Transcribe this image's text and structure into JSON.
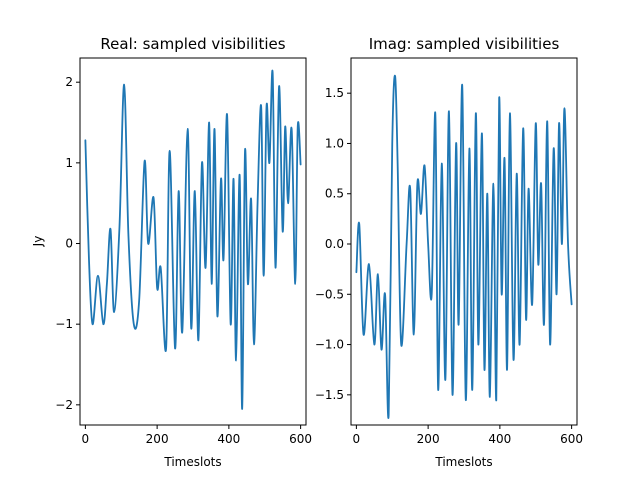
{
  "figure": {
    "background": "#ffffff"
  },
  "chart_data": [
    {
      "type": "line",
      "title": "Real: sampled visibilities",
      "xlabel": "Timeslots",
      "ylabel": "Jy",
      "xlim": [
        -15,
        615
      ],
      "ylim": [
        -2.25,
        2.3
      ],
      "xticks": [
        0,
        200,
        400,
        600
      ],
      "xtick_labels": [
        "0",
        "200",
        "400",
        "600"
      ],
      "yticks": [
        -2,
        -1,
        0,
        1,
        2
      ],
      "ytick_labels": [
        "−2",
        "−1",
        "0",
        "1",
        "2"
      ],
      "grid": false,
      "color": "#1f77b4",
      "series": [
        {
          "x": [
            0,
            10,
            20,
            35,
            50,
            60,
            70,
            80,
            95,
            108,
            120,
            135,
            150,
            165,
            175,
            190,
            200,
            210,
            225,
            235,
            250,
            260,
            270,
            285,
            295,
            305,
            315,
            325,
            335,
            345,
            352,
            360,
            368,
            378,
            385,
            395,
            405,
            413,
            420,
            430,
            437,
            445,
            453,
            462,
            470,
            480,
            490,
            497,
            505,
            513,
            522,
            530,
            540,
            550,
            557,
            565,
            575,
            585,
            592,
            600
          ],
          "y": [
            1.28,
            -0.2,
            -1.0,
            -0.4,
            -1.0,
            -0.5,
            0.18,
            -0.85,
            0.2,
            1.97,
            0.1,
            -1.0,
            -0.7,
            1.02,
            0.0,
            0.57,
            -0.55,
            -0.3,
            -1.3,
            1.15,
            -1.3,
            0.65,
            -1.1,
            1.42,
            -1.05,
            0.65,
            -1.2,
            1.0,
            -0.3,
            1.5,
            -0.5,
            1.42,
            -0.9,
            0.8,
            -0.2,
            1.6,
            -1.0,
            0.8,
            -1.45,
            0.85,
            -2.05,
            1.15,
            -0.5,
            0.55,
            -1.25,
            0.5,
            1.7,
            -0.4,
            1.7,
            1.0,
            2.12,
            -0.3,
            1.95,
            0.15,
            1.45,
            0.5,
            1.42,
            -0.5,
            1.45,
            0.98
          ]
        }
      ]
    },
    {
      "type": "line",
      "title": "Imag: sampled visibilities",
      "xlabel": "Timeslots",
      "ylabel": "",
      "xlim": [
        -15,
        615
      ],
      "ylim": [
        -1.8,
        1.85
      ],
      "xticks": [
        0,
        200,
        400,
        600
      ],
      "xtick_labels": [
        "0",
        "200",
        "400",
        "600"
      ],
      "yticks": [
        -1.5,
        -1.0,
        -0.5,
        0.0,
        0.5,
        1.0,
        1.5
      ],
      "ytick_labels": [
        "−1.5",
        "−1.0",
        "−0.5",
        "0.0",
        "0.5",
        "1.0",
        "1.5"
      ],
      "grid": false,
      "color": "#1f77b4",
      "series": [
        {
          "x": [
            0,
            8,
            20,
            35,
            50,
            60,
            70,
            80,
            90,
            100,
            108,
            115,
            125,
            140,
            150,
            160,
            170,
            180,
            190,
            200,
            210,
            220,
            228,
            238,
            248,
            258,
            268,
            278,
            285,
            295,
            305,
            315,
            323,
            333,
            340,
            350,
            357,
            365,
            372,
            382,
            390,
            398,
            405,
            413,
            420,
            428,
            438,
            447,
            455,
            465,
            473,
            480,
            490,
            500,
            507,
            515,
            523,
            532,
            540,
            550,
            558,
            565,
            573,
            580,
            590,
            600
          ],
          "y": [
            -0.28,
            0.2,
            -0.9,
            -0.2,
            -1.0,
            -0.3,
            -1.05,
            -0.5,
            -1.7,
            1.0,
            1.67,
            0.8,
            -1.0,
            0.0,
            0.55,
            -0.9,
            0.6,
            0.3,
            0.78,
            0.0,
            -0.5,
            1.3,
            -1.45,
            0.8,
            -1.35,
            1.32,
            -1.5,
            1.0,
            -0.8,
            1.58,
            -1.55,
            0.95,
            -1.45,
            1.3,
            -1.0,
            1.1,
            -1.25,
            0.5,
            -1.52,
            0.6,
            -1.55,
            1.45,
            -0.5,
            0.85,
            -1.25,
            1.3,
            -1.15,
            0.7,
            -1.0,
            1.15,
            -0.75,
            0.55,
            -0.6,
            1.2,
            -0.2,
            0.6,
            -0.8,
            1.22,
            -1.0,
            0.95,
            -0.5,
            1.2,
            0.0,
            1.35,
            0.0,
            -0.6
          ]
        }
      ]
    }
  ]
}
